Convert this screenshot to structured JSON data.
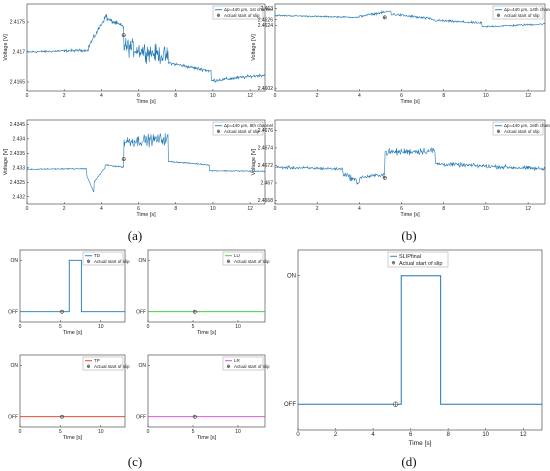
{
  "panel_labels": [
    "(a)",
    "(b)",
    "(c)",
    "(d)"
  ],
  "chart_data": [
    {
      "id": "a1",
      "type": "line",
      "panel": "(a)",
      "xlabel": "Time [s]",
      "ylabel": "Voltage [V]",
      "xlim": [
        0,
        12.8
      ],
      "ylim": [
        2.41635,
        2.4178
      ],
      "xticks": [
        0,
        2,
        4,
        6,
        8,
        10,
        12
      ],
      "yticks": [
        2.4165,
        2.417,
        2.4175
      ],
      "yticklabels": [
        "2.4165",
        "2.417",
        "2.4175"
      ],
      "segments": [
        {
          "t": [
            0,
            3.3
          ],
          "level": [
            2.417,
            2.41703
          ],
          "noise": 3e-05
        },
        {
          "t": [
            3.3,
            4.3
          ],
          "level": [
            2.41708,
            2.41763
          ],
          "noise": 6e-05
        },
        {
          "t": [
            4.3,
            5.2
          ],
          "level": [
            2.41755,
            2.41742
          ],
          "noise": 6e-05
        },
        {
          "t": [
            5.2,
            7.6
          ],
          "level": [
            2.4171,
            2.41692
          ],
          "noise": 0.00022
        },
        {
          "t": [
            7.6,
            9.9
          ],
          "level": [
            2.41682,
            2.41668
          ],
          "noise": 4e-05
        },
        {
          "t": [
            9.9,
            12.8
          ],
          "level": [
            2.41652,
            2.41662
          ],
          "noise": 4e-05
        }
      ],
      "slip_point": {
        "x": 5.2,
        "y": 2.41728
      },
      "legend": [
        "Δp=440 μm, 1st channel",
        "Actual start of slip"
      ]
    },
    {
      "id": "b1",
      "type": "line",
      "panel": "(b)",
      "xlabel": "Time [s]",
      "ylabel": "Voltage [V]",
      "xlim": [
        0,
        12.8
      ],
      "ylim": [
        2.4601,
        2.46315
      ],
      "xticks": [
        0,
        2,
        4,
        6,
        8,
        10,
        12
      ],
      "yticks": [
        2.4602,
        2.4624,
        2.4626,
        2.463
      ],
      "yticklabels": [
        "2.4602",
        "2.4624",
        "2.4626",
        "2.463"
      ],
      "segments": [
        {
          "t": [
            0,
            4.0
          ],
          "level": [
            2.46275,
            2.46268
          ],
          "noise": 4e-05
        },
        {
          "t": [
            4.0,
            5.5
          ],
          "level": [
            2.46272,
            2.4629
          ],
          "noise": 6e-05
        },
        {
          "t": [
            5.5,
            7.5
          ],
          "level": [
            2.4628,
            2.46262
          ],
          "noise": 7e-05
        },
        {
          "t": [
            7.5,
            9.8
          ],
          "level": [
            2.46258,
            2.46248
          ],
          "noise": 6e-05
        },
        {
          "t": [
            9.8,
            12.8
          ],
          "level": [
            2.46235,
            2.46245
          ],
          "noise": 5e-05
        }
      ],
      "slip_point": {
        "x": 5.2,
        "y": 2.46268
      },
      "legend": [
        "Δp=440 μm, 14th channel",
        "Actual start of slip"
      ]
    },
    {
      "id": "a2",
      "type": "line",
      "panel": "(a)",
      "xlabel": "Time [s]",
      "ylabel": "Voltage [V]",
      "xlim": [
        0,
        12.8
      ],
      "ylim": [
        2.43175,
        2.43465
      ],
      "xticks": [
        0,
        2,
        4,
        6,
        8,
        10,
        12
      ],
      "yticks": [
        2.432,
        2.4325,
        2.433,
        2.4335,
        2.434,
        2.4345
      ],
      "yticklabels": [
        "2.432",
        "2.4325",
        "2.433",
        "2.4335",
        "2.434",
        "2.4345"
      ],
      "segments": [
        {
          "t": [
            0,
            3.2
          ],
          "level": [
            2.43295,
            2.43297
          ],
          "noise": 3e-05
        },
        {
          "t": [
            3.2,
            3.6
          ],
          "level": [
            2.43275,
            2.43215
          ],
          "noise": 4e-05
        },
        {
          "t": [
            3.6,
            4.2
          ],
          "level": [
            2.4325,
            2.433
          ],
          "noise": 4e-05
        },
        {
          "t": [
            4.2,
            5.2
          ],
          "level": [
            2.4331,
            2.43302
          ],
          "noise": 3e-05
        },
        {
          "t": [
            5.2,
            7.6
          ],
          "level": [
            2.4339,
            2.434
          ],
          "noise": 0.0003
        },
        {
          "t": [
            7.6,
            9.8
          ],
          "level": [
            2.43322,
            2.4331
          ],
          "noise": 3e-05
        },
        {
          "t": [
            9.8,
            12.8
          ],
          "level": [
            2.4329,
            2.43288
          ],
          "noise": 3e-05
        }
      ],
      "slip_point": {
        "x": 5.2,
        "y": 2.4333
      },
      "legend": [
        "Δp=440 μm, 8th channel",
        "Actual start of slip"
      ]
    },
    {
      "id": "b2",
      "type": "line",
      "panel": "(b)",
      "xlabel": "Time [s]",
      "ylabel": "Voltage [V]",
      "xlim": [
        0,
        12.8
      ],
      "ylim": [
        2.46676,
        2.46772
      ],
      "xticks": [
        0,
        2,
        4,
        6,
        8,
        10,
        12
      ],
      "yticks": [
        2.4668,
        2.467,
        2.4672,
        2.4674,
        2.4676
      ],
      "yticklabels": [
        "2.4668",
        "2.467",
        "2.4672",
        "2.4674",
        "2.4676"
      ],
      "segments": [
        {
          "t": [
            0,
            3.2
          ],
          "level": [
            2.46718,
            2.46716
          ],
          "noise": 2.5e-05
        },
        {
          "t": [
            3.2,
            4.0
          ],
          "level": [
            2.46712,
            2.467
          ],
          "noise": 5e-05
        },
        {
          "t": [
            4.0,
            5.2
          ],
          "level": [
            2.46706,
            2.4671
          ],
          "noise": 3e-05
        },
        {
          "t": [
            5.2,
            7.6
          ],
          "level": [
            2.46735,
            2.46737
          ],
          "noise": 6e-05
        },
        {
          "t": [
            7.6,
            12.8
          ],
          "level": [
            2.46722,
            2.46716
          ],
          "noise": 3.5e-05
        }
      ],
      "slip_point": {
        "x": 5.2,
        "y": 2.46706
      },
      "legend": [
        "Δp=440 μm, 16th channel",
        "Actual start of slip"
      ]
    },
    {
      "id": "c1",
      "type": "line",
      "panel": "(c)",
      "xlabel": "Time [s]",
      "ylabel": "",
      "xlim": [
        0,
        13
      ],
      "ylim": [
        -0.2,
        1.2
      ],
      "xticks": [
        0,
        5,
        10
      ],
      "yticks": [
        0,
        1
      ],
      "yticklabels": [
        "OFF",
        "ON"
      ],
      "x": [
        0,
        6.1,
        6.1,
        7.6,
        7.6,
        13
      ],
      "y": [
        0,
        0,
        1,
        1,
        0,
        0
      ],
      "color": "#1f77b4",
      "slip_point": {
        "x": 5.2,
        "y": 0
      },
      "legend": [
        "TD",
        "Actual start of slip"
      ]
    },
    {
      "id": "c2",
      "type": "line",
      "panel": "(c)",
      "xlabel": "Time [s]",
      "ylabel": "",
      "xlim": [
        0,
        13
      ],
      "ylim": [
        -0.2,
        1.2
      ],
      "xticks": [
        0,
        5,
        10
      ],
      "yticks": [
        0,
        1
      ],
      "yticklabels": [
        "OFF",
        "ON"
      ],
      "x": [
        0,
        13
      ],
      "y": [
        0,
        0
      ],
      "color": "#22cc22",
      "slip_point": {
        "x": 5.2,
        "y": 0
      },
      "legend": [
        "LU",
        "Actual start of slip"
      ]
    },
    {
      "id": "c3",
      "type": "line",
      "panel": "(c)",
      "xlabel": "Time [s]",
      "ylabel": "",
      "xlim": [
        0,
        13
      ],
      "ylim": [
        -0.2,
        1.2
      ],
      "xticks": [
        0,
        5,
        10
      ],
      "yticks": [
        0,
        1
      ],
      "yticklabels": [
        "OFF",
        "ON"
      ],
      "x": [
        0,
        13
      ],
      "y": [
        0,
        0
      ],
      "color": "#e03020",
      "slip_point": {
        "x": 5.2,
        "y": 0
      },
      "legend": [
        "TP",
        "Actual start of slip"
      ]
    },
    {
      "id": "c4",
      "type": "line",
      "panel": "(c)",
      "xlabel": "Time [s]",
      "ylabel": "",
      "xlim": [
        0,
        13
      ],
      "ylim": [
        -0.2,
        1.2
      ],
      "xticks": [
        0,
        5,
        10
      ],
      "yticks": [
        0,
        1
      ],
      "yticklabels": [
        "OFF",
        "ON"
      ],
      "x": [
        0,
        13
      ],
      "y": [
        0,
        0
      ],
      "color": "#d040d0",
      "slip_point": {
        "x": 5.2,
        "y": 0
      },
      "legend": [
        "LR",
        "Actual start of slip"
      ]
    },
    {
      "id": "d",
      "type": "line",
      "panel": "(d)",
      "xlabel": "Time [s]",
      "ylabel": "",
      "xlim": [
        0,
        13
      ],
      "ylim": [
        -0.2,
        1.2
      ],
      "xticks": [
        0,
        2,
        4,
        6,
        8,
        10,
        12
      ],
      "yticks": [
        0,
        1
      ],
      "yticklabels": [
        "OFF",
        "ON"
      ],
      "x": [
        0,
        5.5,
        5.5,
        7.6,
        7.6,
        13
      ],
      "y": [
        0,
        0,
        1,
        1,
        0,
        0
      ],
      "color": "#1f77b4",
      "slip_point": {
        "x": 5.2,
        "y": 0
      },
      "legend": [
        "SLIPfinal",
        "Actual start of slip"
      ]
    }
  ]
}
